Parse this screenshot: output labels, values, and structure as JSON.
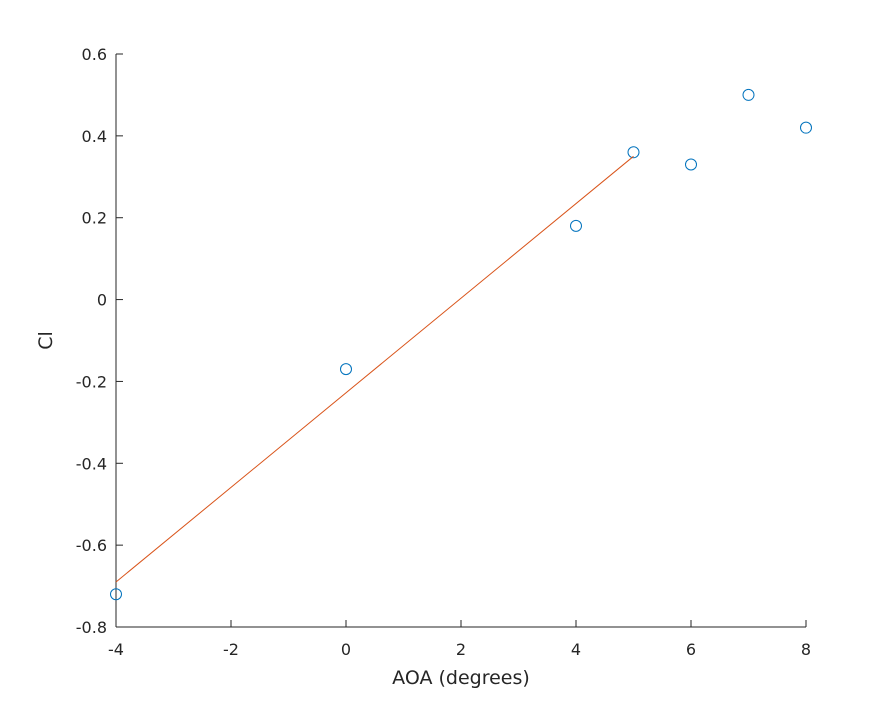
{
  "chart_data": {
    "type": "scatter",
    "xlabel": "AOA (degrees)",
    "ylabel": "Cl",
    "xlim": [
      -4,
      8
    ],
    "ylim": [
      -0.8,
      0.6
    ],
    "x_ticks": [
      -4,
      -2,
      0,
      2,
      4,
      6,
      8
    ],
    "x_tick_labels": [
      "-4",
      "-2",
      "0",
      "2",
      "4",
      "6",
      "8"
    ],
    "y_ticks": [
      -0.8,
      -0.6,
      -0.4,
      -0.2,
      0,
      0.2,
      0.4,
      0.6
    ],
    "y_tick_labels": [
      "-0.8",
      "-0.6",
      "-0.4",
      "-0.2",
      "0",
      "0.2",
      "0.4",
      "0.6"
    ],
    "grid": false,
    "series": [
      {
        "kind": "scatter",
        "marker": "open-circle",
        "color": "#0072BD",
        "x": [
          -4,
          0,
          4,
          5,
          6,
          7,
          8
        ],
        "y": [
          -0.72,
          -0.17,
          0.18,
          0.36,
          0.33,
          0.5,
          0.42
        ]
      },
      {
        "kind": "line",
        "color": "#D95319",
        "x": [
          -4,
          5
        ],
        "y": [
          -0.69,
          0.35
        ]
      }
    ]
  }
}
